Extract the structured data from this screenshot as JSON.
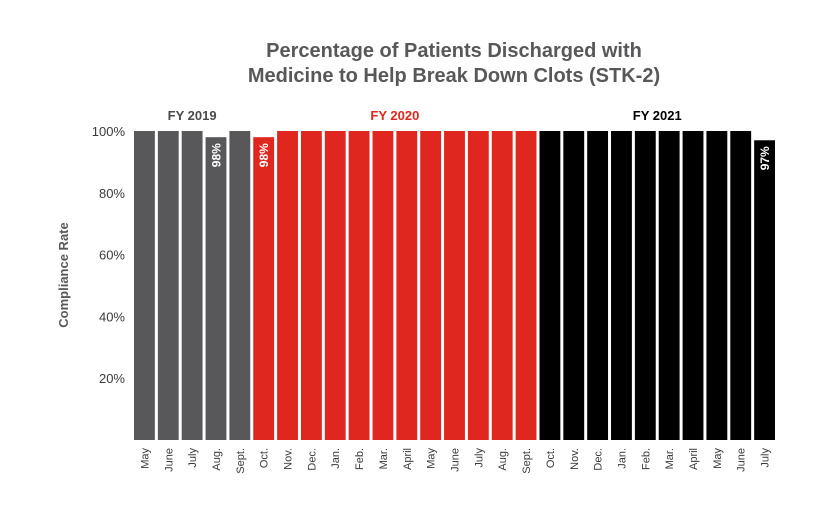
{
  "chart_data": {
    "type": "bar",
    "title_lines": [
      "Percentage of Patients Discharged with",
      "Medicine to Help Break Down Clots (STK-2)"
    ],
    "ylabel": "Compliance Rate",
    "ylim": [
      0,
      100
    ],
    "y_ticks": [
      "20%",
      "40%",
      "60%",
      "80%",
      "100%"
    ],
    "grid": false,
    "groups": [
      {
        "name": "FY 2019",
        "color": "#58585a",
        "label_color": "#4a4a4a",
        "start": 0,
        "end": 4
      },
      {
        "name": "FY 2020",
        "color": "#e0271f",
        "label_color": "#e0271f",
        "start": 5,
        "end": 16
      },
      {
        "name": "FY 2021",
        "color": "#000000",
        "label_color": "#000000",
        "start": 17,
        "end": 26
      }
    ],
    "categories": [
      "May",
      "June",
      "July",
      "Aug.",
      "Sept.",
      "Oct.",
      "Nov.",
      "Dec.",
      "Jan.",
      "Feb.",
      "Mar.",
      "April",
      "May",
      "June",
      "July",
      "Aug.",
      "Sept.",
      "Oct.",
      "Nov.",
      "Dec.",
      "Jan.",
      "Feb.",
      "Mar.",
      "April",
      "May",
      "June",
      "July"
    ],
    "values": [
      100,
      100,
      100,
      98,
      100,
      98,
      100,
      100,
      100,
      100,
      100,
      100,
      100,
      100,
      100,
      100,
      100,
      100,
      100,
      100,
      100,
      100,
      100,
      100,
      100,
      100,
      97
    ],
    "data_labels": [
      {
        "index": 3,
        "text": "98%"
      },
      {
        "index": 5,
        "text": "98%"
      },
      {
        "index": 26,
        "text": "97%"
      }
    ]
  }
}
